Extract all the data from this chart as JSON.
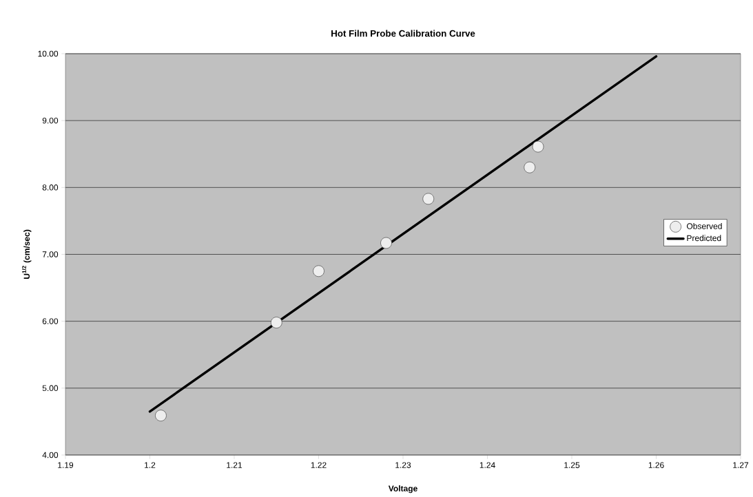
{
  "chart_data": {
    "type": "scatter",
    "title": "Hot Film Probe Calibration Curve",
    "xlabel": "Voltage",
    "ylabel": "U$^{1/2}$ (cm/sec)",
    "xlim": [
      1.19,
      1.27
    ],
    "ylim": [
      4,
      10
    ],
    "xticks": [
      1.19,
      1.2,
      1.21,
      1.22,
      1.23,
      1.24,
      1.25,
      1.26,
      1.27
    ],
    "yticks": [
      {
        "value": 4,
        "label": "4.00"
      },
      {
        "value": 5,
        "label": "5.00"
      },
      {
        "value": 6,
        "label": "6.00"
      },
      {
        "value": 7,
        "label": "7.00"
      },
      {
        "value": 8,
        "label": "8.00"
      },
      {
        "value": 9,
        "label": "9.00"
      },
      {
        "value": 10,
        "label": "10.00"
      }
    ],
    "grid": "y",
    "legend": "right",
    "series": [
      {
        "name": "Observed",
        "marker": "circle",
        "color": "#eeeeee",
        "x": [
          1.2013,
          1.215,
          1.22,
          1.228,
          1.233,
          1.245,
          1.246
        ],
        "values": [
          4.59,
          5.98,
          6.75,
          7.17,
          7.83,
          8.3,
          8.61
        ]
      },
      {
        "name": "Predicted",
        "type": "line",
        "marker": "none",
        "color": "#000000",
        "x": [
          1.2,
          1.26
        ],
        "values": [
          4.65,
          9.96
        ]
      }
    ]
  }
}
